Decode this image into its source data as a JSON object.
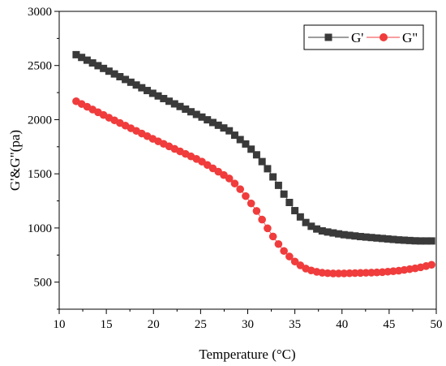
{
  "chart_data": {
    "type": "scatter",
    "title": "",
    "xlabel": "Temperature (°C)",
    "ylabel": "G'&G\"(pa)",
    "xlim": [
      10,
      50
    ],
    "ylim": [
      250,
      3000
    ],
    "xticks": [
      "10",
      "15",
      "20",
      "25",
      "30",
      "35",
      "40",
      "45",
      "50"
    ],
    "yticks": [
      "500",
      "1000",
      "1500",
      "2000",
      "2500",
      "3000"
    ],
    "legend_position": "top-right",
    "grid": false,
    "series": [
      {
        "name": "G'",
        "color": "#3a3a3a",
        "marker": "square",
        "x": [
          11.8,
          15,
          20,
          25,
          28,
          30,
          31,
          32,
          33,
          34,
          35,
          36,
          37,
          38,
          39,
          40,
          42,
          44,
          46,
          48,
          50
        ],
        "y": [
          2600,
          2460,
          2240,
          2030,
          1900,
          1760,
          1670,
          1560,
          1430,
          1290,
          1160,
          1060,
          1000,
          970,
          955,
          940,
          920,
          905,
          890,
          880,
          880
        ]
      },
      {
        "name": "G\"",
        "color": "#f03c3c",
        "marker": "circle",
        "x": [
          11.8,
          15,
          20,
          25,
          28,
          29,
          30,
          31,
          32,
          33,
          34,
          35,
          36,
          37,
          38,
          39,
          40,
          42,
          44,
          46,
          48,
          50
        ],
        "y": [
          2170,
          2030,
          1820,
          1620,
          1460,
          1380,
          1270,
          1150,
          1010,
          880,
          770,
          690,
          630,
          600,
          585,
          580,
          580,
          585,
          590,
          605,
          630,
          670
        ]
      }
    ]
  }
}
